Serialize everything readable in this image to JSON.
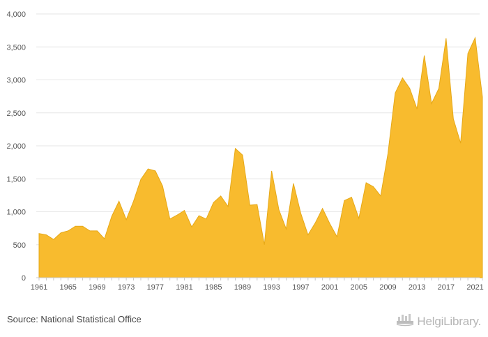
{
  "chart_data": {
    "type": "area",
    "title": "",
    "xlabel": "",
    "ylabel": "",
    "ylim": [
      0,
      4000
    ],
    "yticks": [
      0,
      500,
      1000,
      1500,
      2000,
      2500,
      3000,
      3500,
      4000
    ],
    "ytick_labels": [
      "0",
      "500",
      "1,000",
      "1,500",
      "2,000",
      "2,500",
      "3,000",
      "3,500",
      "4,000"
    ],
    "xlim": [
      1961,
      2022
    ],
    "xticks": [
      1961,
      1965,
      1969,
      1973,
      1977,
      1981,
      1985,
      1989,
      1993,
      1997,
      2001,
      2005,
      2009,
      2013,
      2017,
      2021
    ],
    "xtick_labels": [
      "1961",
      "1965",
      "1969",
      "1973",
      "1977",
      "1981",
      "1985",
      "1989",
      "1993",
      "1997",
      "2001",
      "2005",
      "2009",
      "2013",
      "2017",
      "2021"
    ],
    "grid": true,
    "color": "#f8bb2e",
    "stroke_color": "#e6a817",
    "x": [
      1961,
      1962,
      1963,
      1964,
      1965,
      1966,
      1967,
      1968,
      1969,
      1970,
      1971,
      1972,
      1973,
      1974,
      1975,
      1976,
      1977,
      1978,
      1979,
      1980,
      1981,
      1982,
      1983,
      1984,
      1985,
      1986,
      1987,
      1988,
      1989,
      1990,
      1991,
      1992,
      1993,
      1994,
      1995,
      1996,
      1997,
      1998,
      1999,
      2000,
      2001,
      2002,
      2003,
      2004,
      2005,
      2006,
      2007,
      2008,
      2009,
      2010,
      2011,
      2012,
      2013,
      2014,
      2015,
      2016,
      2017,
      2018,
      2019,
      2020,
      2021,
      2022
    ],
    "values": [
      670,
      650,
      580,
      680,
      710,
      780,
      780,
      710,
      710,
      590,
      930,
      1160,
      880,
      1160,
      1490,
      1650,
      1620,
      1390,
      890,
      950,
      1020,
      770,
      940,
      890,
      1140,
      1240,
      1080,
      1960,
      1860,
      1100,
      1110,
      500,
      1620,
      1030,
      740,
      1430,
      980,
      650,
      830,
      1050,
      820,
      620,
      1170,
      1220,
      900,
      1440,
      1380,
      1240,
      1880,
      2800,
      3030,
      2870,
      2560,
      3370,
      2640,
      2870,
      3630,
      2410,
      2040,
      3400,
      3640,
      2740
    ]
  },
  "footer": {
    "source": "Source: National Statistical Office",
    "brand": "HelgiLibrary."
  },
  "icons": {
    "brand_logo": "helgi-library-logo-icon"
  }
}
